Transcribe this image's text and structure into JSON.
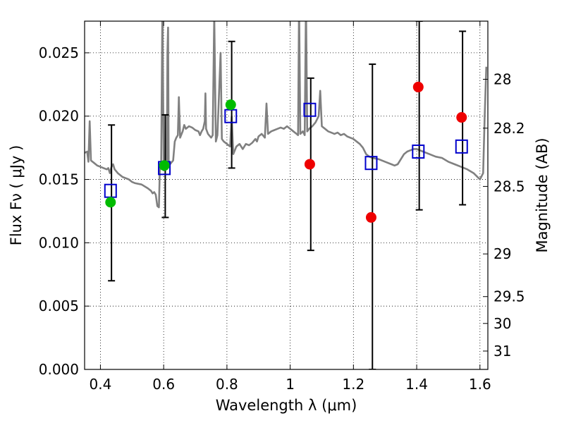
{
  "chart_data": {
    "type": "scatter",
    "xlabel": "Wavelength  λ (μm)",
    "ylabel": "Flux  Fν  ( μJy )",
    "y2label": "Magnitude (AB)",
    "xlim": [
      0.35,
      1.625
    ],
    "ylim": [
      0.0,
      0.0275
    ],
    "grid": true,
    "xticks": [
      {
        "value": 0.4,
        "label": "0.4"
      },
      {
        "value": 0.6,
        "label": "0.6"
      },
      {
        "value": 0.8,
        "label": "0.8"
      },
      {
        "value": 1.0,
        "label": "1"
      },
      {
        "value": 1.2,
        "label": "1.2"
      },
      {
        "value": 1.4,
        "label": "1.4"
      },
      {
        "value": 1.6,
        "label": "1.6"
      }
    ],
    "yticks": [
      {
        "value": 0.0,
        "label": "0.000"
      },
      {
        "value": 0.005,
        "label": "0.005"
      },
      {
        "value": 0.01,
        "label": "0.010"
      },
      {
        "value": 0.015,
        "label": "0.015"
      },
      {
        "value": 0.02,
        "label": "0.020"
      },
      {
        "value": 0.025,
        "label": "0.025"
      }
    ],
    "magnitude_ticks": [
      {
        "label": "28",
        "flux": 0.02291
      },
      {
        "label": "28.2",
        "flux": 0.01905
      },
      {
        "label": "28.5",
        "flux": 0.01445
      },
      {
        "label": "29",
        "flux": 0.00912
      },
      {
        "label": "29.5",
        "flux": 0.00575
      },
      {
        "label": "30",
        "flux": 0.00363
      },
      {
        "label": "31",
        "flux": 0.00145
      }
    ],
    "colors": {
      "spectrum": "#808080",
      "detected": "#00bb00",
      "upper_limit": "#ee0000",
      "model": "#0000cc",
      "errorbar": "#000000",
      "grid": "#000000"
    },
    "series": [
      {
        "name": "Model spectrum",
        "kind": "line",
        "points": [
          [
            0.35,
            0.0171
          ],
          [
            0.358,
            0.0172
          ],
          [
            0.362,
            0.0164
          ],
          [
            0.366,
            0.0196
          ],
          [
            0.37,
            0.0165
          ],
          [
            0.38,
            0.0163
          ],
          [
            0.39,
            0.0161
          ],
          [
            0.4,
            0.016
          ],
          [
            0.41,
            0.0159
          ],
          [
            0.42,
            0.0158
          ],
          [
            0.425,
            0.0159
          ],
          [
            0.43,
            0.0155
          ],
          [
            0.435,
            0.016
          ],
          [
            0.44,
            0.0162
          ],
          [
            0.445,
            0.0158
          ],
          [
            0.455,
            0.0155
          ],
          [
            0.47,
            0.0152
          ],
          [
            0.49,
            0.015
          ],
          [
            0.5,
            0.0148
          ],
          [
            0.51,
            0.0147
          ],
          [
            0.53,
            0.0146
          ],
          [
            0.55,
            0.0143
          ],
          [
            0.56,
            0.0141
          ],
          [
            0.565,
            0.0139
          ],
          [
            0.57,
            0.014
          ],
          [
            0.575,
            0.0138
          ],
          [
            0.58,
            0.0129
          ],
          [
            0.585,
            0.0128
          ],
          [
            0.588,
            0.016
          ],
          [
            0.592,
            0.016
          ],
          [
            0.596,
            0.029
          ],
          [
            0.6,
            0.016
          ],
          [
            0.605,
            0.0162
          ],
          [
            0.61,
            0.016
          ],
          [
            0.612,
            0.025
          ],
          [
            0.614,
            0.027
          ],
          [
            0.616,
            0.016
          ],
          [
            0.62,
            0.0162
          ],
          [
            0.63,
            0.0165
          ],
          [
            0.635,
            0.018
          ],
          [
            0.64,
            0.0183
          ],
          [
            0.645,
            0.0185
          ],
          [
            0.648,
            0.0215
          ],
          [
            0.652,
            0.0183
          ],
          [
            0.66,
            0.0188
          ],
          [
            0.665,
            0.0193
          ],
          [
            0.67,
            0.019
          ],
          [
            0.68,
            0.0192
          ],
          [
            0.69,
            0.0191
          ],
          [
            0.7,
            0.0189
          ],
          [
            0.71,
            0.0188
          ],
          [
            0.715,
            0.0185
          ],
          [
            0.72,
            0.0188
          ],
          [
            0.725,
            0.019
          ],
          [
            0.73,
            0.0196
          ],
          [
            0.732,
            0.0218
          ],
          [
            0.734,
            0.019
          ],
          [
            0.74,
            0.0186
          ],
          [
            0.75,
            0.0183
          ],
          [
            0.755,
            0.0185
          ],
          [
            0.76,
            0.028
          ],
          [
            0.765,
            0.018
          ],
          [
            0.77,
            0.0185
          ],
          [
            0.78,
            0.025
          ],
          [
            0.784,
            0.0182
          ],
          [
            0.79,
            0.018
          ],
          [
            0.8,
            0.0178
          ],
          [
            0.81,
            0.0176
          ],
          [
            0.815,
            0.02
          ],
          [
            0.82,
            0.017
          ],
          [
            0.83,
            0.0176
          ],
          [
            0.84,
            0.0178
          ],
          [
            0.85,
            0.0174
          ],
          [
            0.86,
            0.0178
          ],
          [
            0.87,
            0.0177
          ],
          [
            0.88,
            0.0179
          ],
          [
            0.89,
            0.0182
          ],
          [
            0.895,
            0.018
          ],
          [
            0.9,
            0.0184
          ],
          [
            0.91,
            0.0186
          ],
          [
            0.92,
            0.0183
          ],
          [
            0.925,
            0.021
          ],
          [
            0.93,
            0.0186
          ],
          [
            0.94,
            0.0188
          ],
          [
            0.95,
            0.0189
          ],
          [
            0.96,
            0.019
          ],
          [
            0.97,
            0.0191
          ],
          [
            0.98,
            0.019
          ],
          [
            0.99,
            0.0192
          ],
          [
            1.0,
            0.019
          ],
          [
            1.01,
            0.0188
          ],
          [
            1.02,
            0.0186
          ],
          [
            1.025,
            0.0185
          ],
          [
            1.028,
            0.029
          ],
          [
            1.032,
            0.0186
          ],
          [
            1.04,
            0.0188
          ],
          [
            1.046,
            0.0185
          ],
          [
            1.05,
            0.029
          ],
          [
            1.054,
            0.0188
          ],
          [
            1.06,
            0.019
          ],
          [
            1.07,
            0.0192
          ],
          [
            1.08,
            0.0195
          ],
          [
            1.09,
            0.02
          ],
          [
            1.095,
            0.022
          ],
          [
            1.1,
            0.0192
          ],
          [
            1.11,
            0.019
          ],
          [
            1.12,
            0.0188
          ],
          [
            1.13,
            0.0187
          ],
          [
            1.14,
            0.0186
          ],
          [
            1.15,
            0.0187
          ],
          [
            1.16,
            0.0185
          ],
          [
            1.17,
            0.0186
          ],
          [
            1.18,
            0.0184
          ],
          [
            1.19,
            0.0183
          ],
          [
            1.2,
            0.0182
          ],
          [
            1.21,
            0.018
          ],
          [
            1.22,
            0.0178
          ],
          [
            1.23,
            0.0175
          ],
          [
            1.24,
            0.017
          ],
          [
            1.25,
            0.0168
          ],
          [
            1.26,
            0.0167
          ],
          [
            1.28,
            0.0166
          ],
          [
            1.3,
            0.0164
          ],
          [
            1.32,
            0.0162
          ],
          [
            1.33,
            0.0161
          ],
          [
            1.34,
            0.0162
          ],
          [
            1.35,
            0.0166
          ],
          [
            1.36,
            0.017
          ],
          [
            1.37,
            0.0172
          ],
          [
            1.38,
            0.0173
          ],
          [
            1.39,
            0.0174
          ],
          [
            1.4,
            0.0174
          ],
          [
            1.41,
            0.0173
          ],
          [
            1.42,
            0.0172
          ],
          [
            1.44,
            0.017
          ],
          [
            1.46,
            0.0168
          ],
          [
            1.48,
            0.0167
          ],
          [
            1.5,
            0.0164
          ],
          [
            1.52,
            0.0162
          ],
          [
            1.54,
            0.016
          ],
          [
            1.56,
            0.0158
          ],
          [
            1.58,
            0.0155
          ],
          [
            1.6,
            0.015
          ],
          [
            1.61,
            0.0155
          ],
          [
            1.615,
            0.02
          ],
          [
            1.62,
            0.0239
          ]
        ]
      },
      {
        "name": "Detected photometry",
        "kind": "points",
        "marker": "circle",
        "points": [
          [
            0.432,
            0.0132
          ],
          [
            0.602,
            0.0161
          ],
          [
            0.812,
            0.0209
          ]
        ]
      },
      {
        "name": "Non-detections",
        "kind": "points",
        "marker": "circle",
        "points": [
          [
            1.062,
            0.0162
          ],
          [
            1.256,
            0.012
          ],
          [
            1.405,
            0.0223
          ],
          [
            1.542,
            0.0199
          ]
        ]
      },
      {
        "name": "Model photometry",
        "kind": "points",
        "marker": "open-square",
        "points": [
          [
            0.432,
            0.0141
          ],
          [
            0.602,
            0.0159
          ],
          [
            0.812,
            0.02
          ],
          [
            1.062,
            0.0205
          ],
          [
            1.256,
            0.0163
          ],
          [
            1.405,
            0.0172
          ],
          [
            1.542,
            0.0176
          ]
        ]
      },
      {
        "name": "Error bars",
        "kind": "errorbars",
        "bars": [
          {
            "x": 0.435,
            "low": 0.007,
            "high": 0.0193
          },
          {
            "x": 0.605,
            "low": 0.012,
            "high": 0.0201
          },
          {
            "x": 0.815,
            "low": 0.0159,
            "high": 0.0259
          },
          {
            "x": 1.065,
            "low": 0.0094,
            "high": 0.023
          },
          {
            "x": 1.26,
            "low": 0.0,
            "high": 0.0241
          },
          {
            "x": 1.408,
            "low": 0.0126,
            "high": 0.0275
          },
          {
            "x": 1.545,
            "low": 0.013,
            "high": 0.0267
          }
        ]
      }
    ]
  }
}
